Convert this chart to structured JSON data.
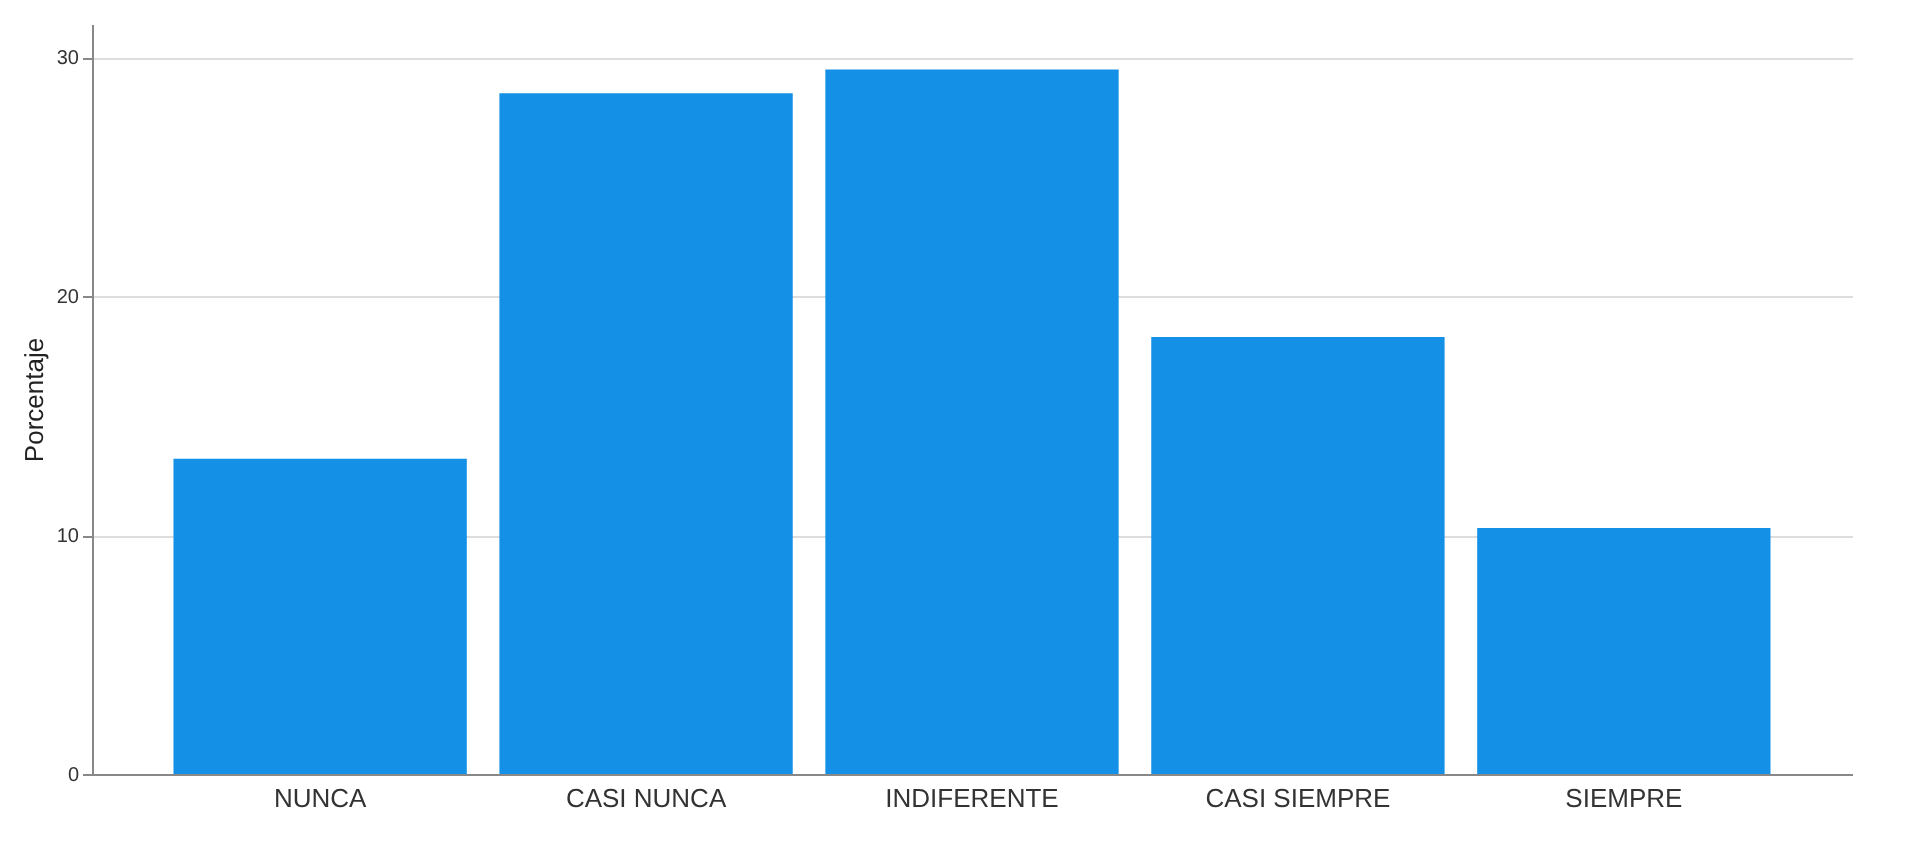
{
  "chart_data": {
    "type": "bar",
    "ylabel": "Porcentaje",
    "categories": [
      "NUNCA",
      "CASI NUNCA",
      "INDIFERENTE",
      "CASI SIEMPRE",
      "SIEMPRE"
    ],
    "values": [
      13.2,
      28.5,
      29.5,
      18.3,
      10.3
    ],
    "color": "#1490e6",
    "ylim": [
      0,
      31.4
    ],
    "yticks": [
      0,
      10,
      20,
      30
    ],
    "grid": "y"
  }
}
